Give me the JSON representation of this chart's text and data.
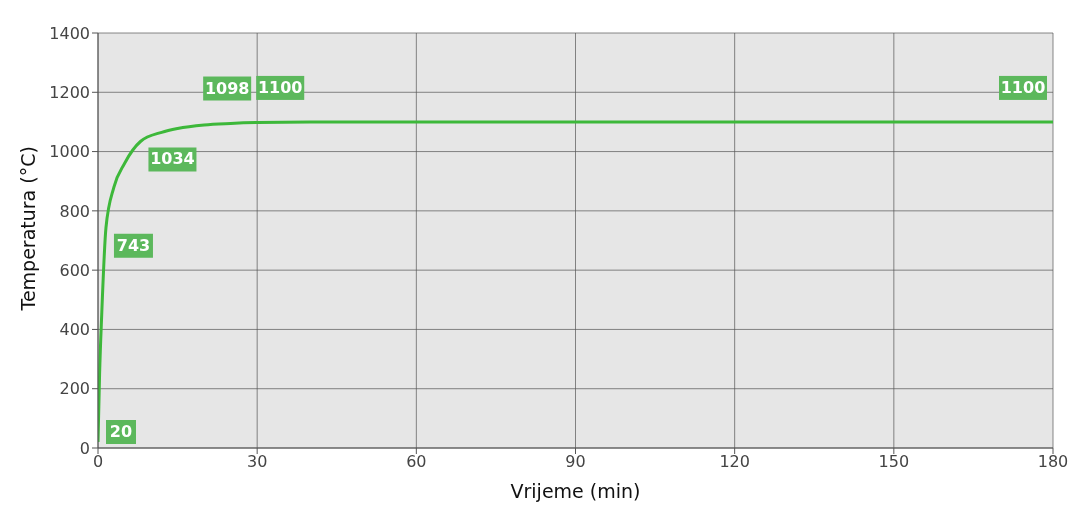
{
  "chart_data": {
    "type": "line",
    "xlabel": "Vrijeme (min)",
    "ylabel": "Temperatura (°C)",
    "x": [
      0,
      0.3,
      0.7,
      1.5,
      3,
      5,
      8,
      12,
      15,
      20,
      25,
      30,
      40,
      60,
      120,
      180
    ],
    "series": [
      {
        "color": "#3db83a",
        "values": [
          20,
          250,
          450,
          743,
          880,
          960,
          1034,
          1065,
          1078,
          1090,
          1095,
          1098,
          1100,
          1100,
          1100,
          1100
        ],
        "value_labels": [
          "20",
          null,
          null,
          "743",
          null,
          null,
          "1034",
          null,
          null,
          null,
          null,
          "1098",
          "1100",
          null,
          null,
          "1100"
        ]
      }
    ],
    "xlim": [
      0,
      180
    ],
    "xticks": [
      0,
      30,
      60,
      90,
      120,
      150,
      180
    ],
    "ylim": [
      0,
      1400
    ],
    "yticks": [
      0,
      200,
      400,
      600,
      800,
      1000,
      1200,
      1400
    ],
    "grid": true,
    "marker": "none",
    "line_style": "solid"
  }
}
